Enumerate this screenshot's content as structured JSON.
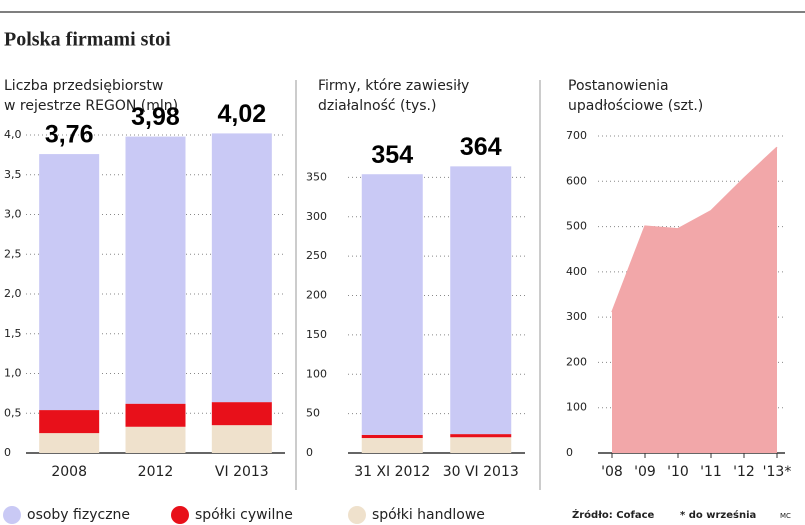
{
  "header": {
    "title": "Polska firmami stoi"
  },
  "legend": [
    {
      "name": "osoby fizyczne",
      "color": "#c9c9f5"
    },
    {
      "name": "spółki cywilne",
      "color": "#e8101a"
    },
    {
      "name": "spółki handlowe",
      "color": "#efe1cc"
    }
  ],
  "chart_data": [
    {
      "type": "stacked-bar",
      "title_lines": [
        "Liczba przedsiębiorstw",
        "w rejestrze REGON (mln)"
      ],
      "categories": [
        "2008",
        "2012",
        "VI 2013"
      ],
      "series": [
        {
          "color": "#efe1cc",
          "values": [
            0.25,
            0.33,
            0.35
          ]
        },
        {
          "color": "#e8101a",
          "values": [
            0.29,
            0.29,
            0.29
          ]
        },
        {
          "color": "#c9c9f5",
          "values": [
            3.22,
            3.36,
            3.38
          ]
        }
      ],
      "totals": [
        3.76,
        3.98,
        4.02
      ],
      "total_labels": [
        "3,76",
        "3,98",
        "4,02"
      ],
      "ylim": [
        0,
        4.0
      ],
      "yticks": [
        0,
        {
          "value": 0.5,
          "label": "0,5"
        },
        {
          "value": 1.0,
          "label": "1,0"
        },
        {
          "value": 1.5,
          "label": "1,5"
        },
        {
          "value": 2.0,
          "label": "2,0"
        },
        {
          "value": 2.5,
          "label": "2,5"
        },
        {
          "value": 3.0,
          "label": "3,0"
        },
        {
          "value": 3.5,
          "label": "3,5"
        },
        {
          "value": 4.0,
          "label": "4,0"
        }
      ],
      "grid": true
    },
    {
      "type": "stacked-bar",
      "title_lines": [
        "Firmy, które zawiesiły",
        "działalność (tys.)"
      ],
      "categories": [
        "31 XI 2012",
        "30 VI 2013"
      ],
      "series": [
        {
          "color": "#efe1cc",
          "values": [
            19,
            20
          ]
        },
        {
          "color": "#e8101a",
          "values": [
            4,
            4
          ]
        },
        {
          "color": "#c9c9f5",
          "values": [
            331,
            340
          ]
        }
      ],
      "totals": [
        354,
        364
      ],
      "ylim": [
        0,
        400
      ],
      "yticks": [
        0,
        50,
        100,
        150,
        200,
        250,
        300,
        350
      ],
      "grid": true
    },
    {
      "type": "area",
      "title_lines": [
        "Postanowienia",
        "upadłościowe (szt.)"
      ],
      "categories": [
        "'08",
        "'09",
        "'10",
        "'11",
        "'12",
        "'13*"
      ],
      "values": [
        311,
        501,
        495,
        535,
        607,
        675
      ],
      "color": "#f2a7a9",
      "ylim": [
        0,
        700
      ],
      "yticks": [
        0,
        100,
        200,
        300,
        400,
        500,
        600,
        700
      ],
      "grid": true
    }
  ],
  "footer": {
    "source": "Źródło: Coface",
    "note": "* do września",
    "author": "MC"
  }
}
